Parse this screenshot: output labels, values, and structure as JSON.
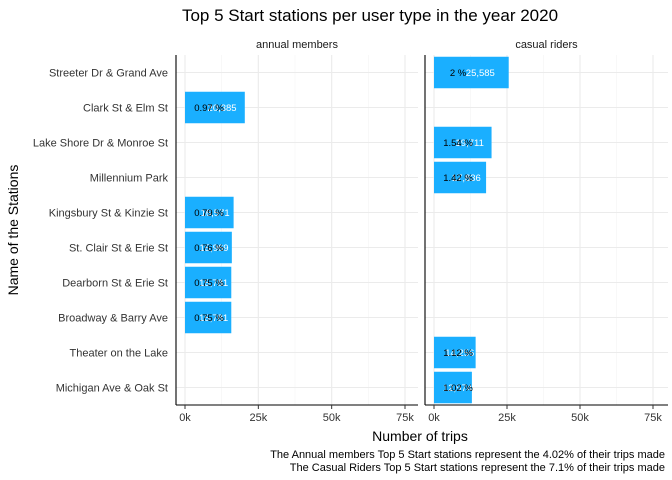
{
  "chart_data": {
    "type": "bar",
    "orientation": "horizontal",
    "title": "Top 5 Start stations per user type in the year 2020",
    "xlabel": "Number of trips",
    "ylabel": "Name of the Stations",
    "xlim": [
      0,
      77000
    ],
    "xticks": [
      0,
      25000,
      50000,
      75000
    ],
    "xtick_labels": [
      "0k",
      "25k",
      "50k",
      "75k"
    ],
    "grid": true,
    "bar_color": "#1AAFFF",
    "categories": [
      "Streeter Dr & Grand Ave",
      "Clark St & Elm St",
      "Lake Shore Dr & Monroe St",
      "Millennium Park",
      "Kingsbury St & Kinzie St",
      "St. Clair St & Erie St",
      "Dearborn St & Erie St",
      "Broadway & Barry Ave",
      "Theater on the Lake",
      "Michigan Ave & Oak St"
    ],
    "facets": [
      {
        "name": "annual members",
        "values": [
          null,
          20385,
          null,
          null,
          16571,
          15969,
          15781,
          15781,
          null,
          null
        ],
        "count_labels": [
          "",
          "20,385",
          "",
          "",
          "16,571",
          "15,969",
          "15,781",
          "15,781",
          "",
          ""
        ],
        "pct_labels": [
          "",
          "0.97 %",
          "",
          "",
          "0.79 %",
          "0.76 %",
          "0.75 %",
          "0.75 %",
          "",
          ""
        ]
      },
      {
        "name": "casual riders",
        "values": [
          25585,
          null,
          19711,
          17836,
          null,
          null,
          null,
          null,
          14256,
          12974
        ],
        "count_labels": [
          "25,585",
          "",
          "19,711",
          "17,836",
          "",
          "",
          "",
          "",
          "14,256",
          "12,974"
        ],
        "pct_labels": [
          "2 %",
          "",
          "1.54 %",
          "1.42 %",
          "",
          "",
          "",
          "",
          "1.12 %",
          "1.02 %"
        ]
      }
    ],
    "captions": [
      "The Annual members Top 5 Start stations represent the 4.02% of their trips made",
      "The Casual Riders Top 5 Start stations represent the 7.1% of their trips made"
    ]
  }
}
